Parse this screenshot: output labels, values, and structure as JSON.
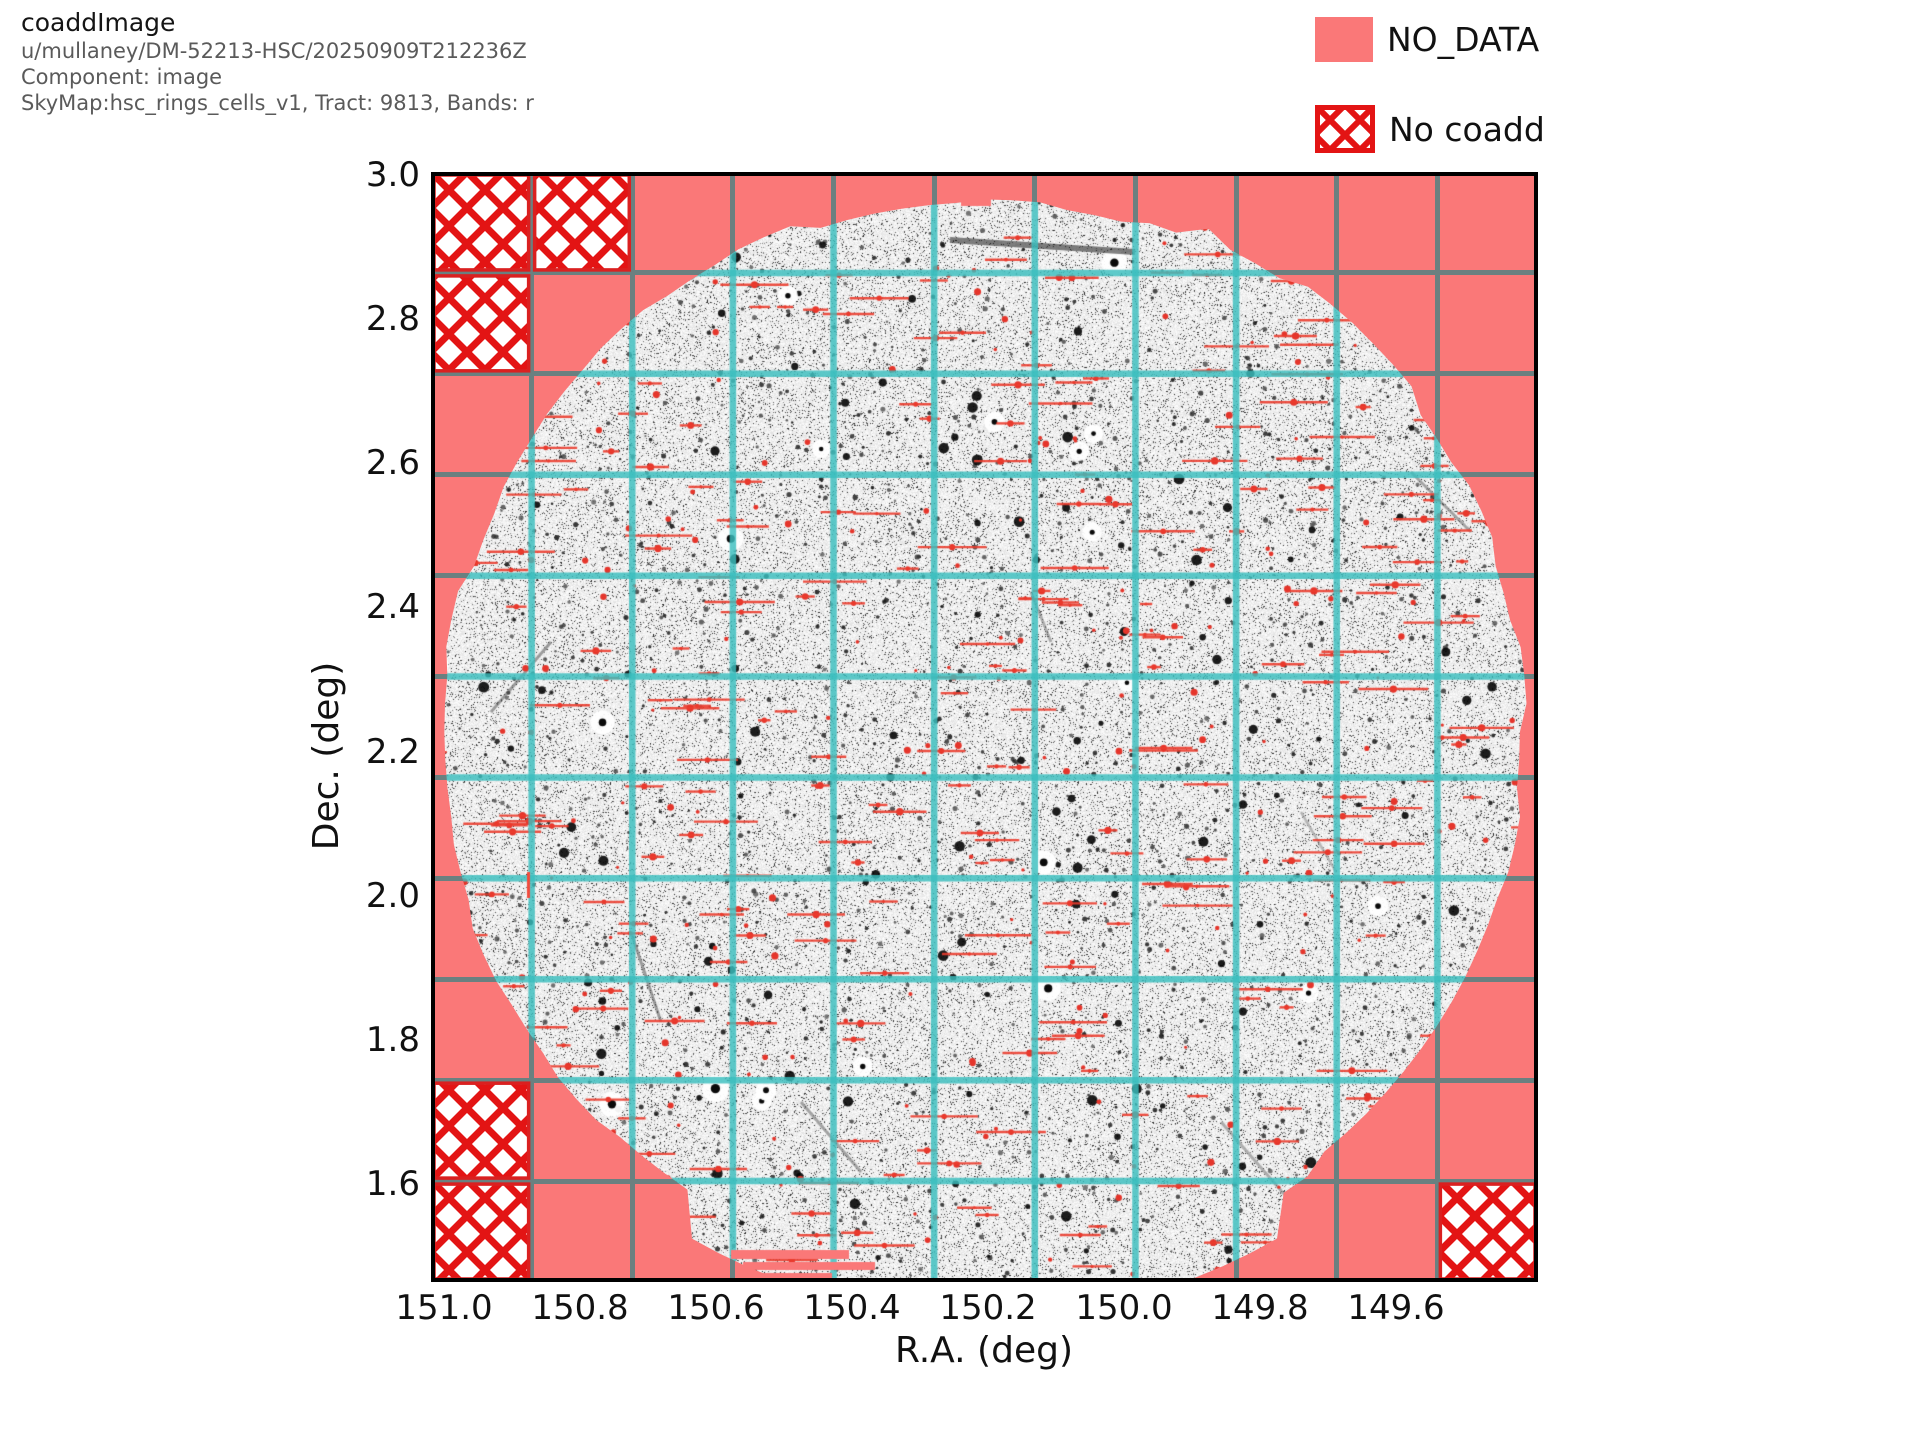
{
  "header": {
    "title": "coaddImage",
    "run": "u/mullaney/DM-52213-HSC/20250909T212236Z",
    "component": "Component: image",
    "skymap": "SkyMap:hsc_rings_cells_v1, Tract: 9813, Bands: r"
  },
  "legend": {
    "no_data_label": "NO_DATA",
    "no_coadd_label": "No coadd"
  },
  "axes": {
    "xlabel": "R.A. (deg)",
    "ylabel": "Dec. (deg)",
    "x_ticks": [
      "151.0",
      "150.8",
      "150.6",
      "150.4",
      "150.2",
      "150.0",
      "149.8",
      "149.6"
    ],
    "y_ticks": [
      "3.0",
      "2.8",
      "2.6",
      "2.4",
      "2.2",
      "2.0",
      "1.8",
      "1.6"
    ]
  },
  "colors": {
    "no_data_fill": "#fa7878",
    "no_coadd_hatch": "#e31414",
    "grid_over_image": "#3abebe",
    "grid_over_nodata": "#6a8080",
    "image_background": "#eeeeee",
    "mask_mark_red": "#e5352b"
  },
  "chart_data": {
    "type": "heatmap",
    "subtype": "astronomical coadd image (grayscale star field)",
    "title": "coaddImage",
    "xlabel": "R.A. (deg)",
    "ylabel": "Dec. (deg)",
    "x_tick_values": [
      151.0,
      150.8,
      150.6,
      150.4,
      150.2,
      150.0,
      149.8,
      149.6
    ],
    "y_tick_values": [
      3.0,
      2.8,
      2.6,
      2.4,
      2.2,
      2.0,
      1.8,
      1.6
    ],
    "x_range_deg": [
      151.02,
      149.39
    ],
    "x_axis_inverted": true,
    "y_range_deg": [
      1.46,
      3.0
    ],
    "grid": {
      "rows": 11,
      "cols": 11,
      "meaning": "patch boundaries of tract 9813"
    },
    "field_shape": "roughly circular survey footprint inscribed in the tract square",
    "no_coadd_patches_col_row_from_topleft": [
      [
        0,
        0
      ],
      [
        1,
        0
      ],
      [
        0,
        1
      ],
      [
        0,
        9
      ],
      [
        0,
        10
      ],
      [
        10,
        10
      ]
    ],
    "legend_entries": [
      {
        "label": "NO_DATA",
        "style": "solid salmon fill"
      },
      {
        "label": "No coadd",
        "style": "red cross-hatch on white"
      }
    ],
    "skymap": "hsc_rings_cells_v1",
    "tract": 9813,
    "bands": "r"
  }
}
